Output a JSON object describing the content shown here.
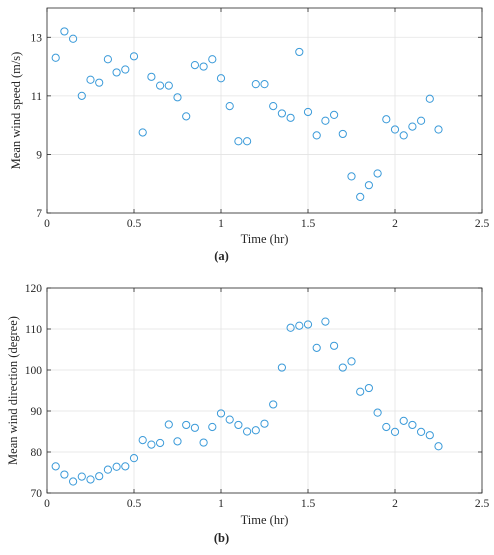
{
  "chart_data": [
    {
      "type": "scatter",
      "panel_label": "(a)",
      "xlabel": "Time (hr)",
      "ylabel": "Mean wind speed (m/s)",
      "xlim": [
        0,
        2.5
      ],
      "ylim": [
        7,
        14
      ],
      "xticks": [
        0,
        0.5,
        1,
        1.5,
        2,
        2.5
      ],
      "xtick_labels": [
        "0",
        "0.5",
        "1",
        "1.5",
        "2",
        "2.5"
      ],
      "yticks": [
        7,
        9,
        11,
        13
      ],
      "ytick_labels": [
        "7",
        "9",
        "11",
        "13"
      ],
      "grid": true,
      "marker": "open-circle",
      "color": "#3a9ad9",
      "x": [
        0.05,
        0.1,
        0.15,
        0.2,
        0.25,
        0.3,
        0.35,
        0.4,
        0.45,
        0.5,
        0.55,
        0.6,
        0.65,
        0.7,
        0.75,
        0.8,
        0.85,
        0.9,
        0.95,
        1.0,
        1.05,
        1.1,
        1.15,
        1.2,
        1.25,
        1.3,
        1.35,
        1.4,
        1.45,
        1.5,
        1.55,
        1.6,
        1.65,
        1.7,
        1.75,
        1.8,
        1.85,
        1.9,
        1.95,
        2.0,
        2.05,
        2.1,
        2.15,
        2.2,
        2.25
      ],
      "y": [
        12.3,
        13.2,
        12.95,
        11.0,
        11.55,
        11.45,
        12.25,
        11.8,
        11.9,
        12.35,
        9.75,
        11.65,
        11.35,
        11.35,
        10.95,
        10.3,
        12.05,
        12.0,
        12.25,
        11.6,
        10.65,
        9.45,
        9.45,
        11.4,
        11.4,
        10.65,
        10.4,
        10.25,
        12.5,
        10.45,
        9.65,
        10.15,
        10.35,
        9.7,
        8.25,
        7.55,
        7.95,
        8.35,
        10.2,
        9.85,
        9.65,
        9.95,
        10.15,
        10.9,
        9.85
      ]
    },
    {
      "type": "scatter",
      "panel_label": "(b)",
      "xlabel": "Time (hr)",
      "ylabel": "Mean wind direction (degree)",
      "xlim": [
        0,
        2.5
      ],
      "ylim": [
        70,
        120
      ],
      "xticks": [
        0,
        0.5,
        1,
        1.5,
        2,
        2.5
      ],
      "xtick_labels": [
        "0",
        "0.5",
        "1",
        "1.5",
        "2",
        "2.5"
      ],
      "yticks": [
        70,
        80,
        90,
        100,
        110,
        120
      ],
      "ytick_labels": [
        "70",
        "80",
        "90",
        "100",
        "110",
        "120"
      ],
      "grid": true,
      "marker": "open-circle",
      "color": "#3a9ad9",
      "x": [
        0.05,
        0.1,
        0.15,
        0.2,
        0.25,
        0.3,
        0.35,
        0.4,
        0.45,
        0.5,
        0.55,
        0.6,
        0.65,
        0.7,
        0.75,
        0.8,
        0.85,
        0.9,
        0.95,
        1.0,
        1.05,
        1.1,
        1.15,
        1.2,
        1.25,
        1.3,
        1.35,
        1.4,
        1.45,
        1.5,
        1.55,
        1.6,
        1.65,
        1.7,
        1.75,
        1.8,
        1.85,
        1.9,
        1.95,
        2.0,
        2.05,
        2.1,
        2.15,
        2.2,
        2.25
      ],
      "y": [
        76.5,
        74.5,
        72.8,
        74.0,
        73.3,
        74.1,
        75.7,
        76.4,
        76.5,
        78.5,
        82.9,
        81.8,
        82.2,
        86.7,
        82.6,
        86.6,
        85.9,
        82.3,
        86.1,
        89.4,
        87.9,
        86.6,
        85.0,
        85.3,
        86.9,
        91.6,
        100.6,
        110.3,
        110.8,
        111.1,
        105.4,
        111.8,
        105.9,
        100.6,
        102.1,
        94.7,
        95.6,
        89.6,
        86.1,
        84.9,
        87.6,
        86.6,
        84.9,
        84.1,
        81.4
      ]
    }
  ]
}
